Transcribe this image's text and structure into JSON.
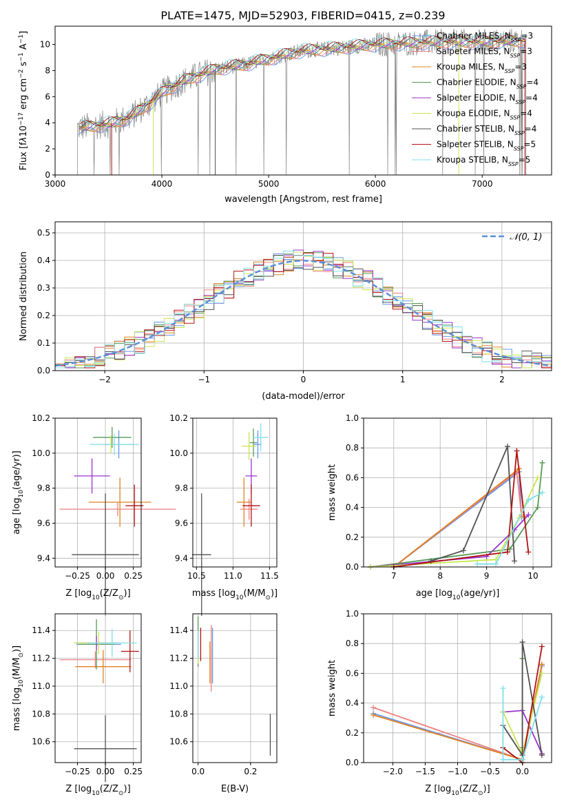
{
  "figure_title": "PLATE=1475, MJD=52903, FIBERID=0415, z=0.239",
  "colors": {
    "chabrier_miles": "#6495ed",
    "salpeter_miles": "#f08080",
    "kroupa_miles": "#e08020",
    "chabrier_elodie": "#559955",
    "salpeter_elodie": "#9932cc",
    "kroupa_elodie": "#c8e650",
    "chabrier_stelib": "#505050",
    "salpeter_stelib": "#b01010",
    "kroupa_stelib": "#7fdfe8",
    "data": "#808080",
    "gaussian": "#5b8fd9"
  },
  "chart_data": [
    {
      "id": "spectrum",
      "type": "line",
      "xlabel": "wavelength [Angstrom, rest frame]",
      "ylabel_parts": [
        "Flux [f",
        "λ",
        "10",
        "−17",
        " erg cm",
        "−2",
        " s",
        "−1",
        " A",
        "−1",
        "]"
      ],
      "xlim": [
        3000,
        7650
      ],
      "ylim": [
        0,
        11.4
      ],
      "xticks": [
        3000,
        4000,
        5000,
        6000,
        7000
      ],
      "yticks": [
        0,
        2,
        4,
        6,
        8,
        10
      ],
      "data_color_key": "data",
      "data_range": [
        3210,
        7410
      ],
      "continuum": [
        [
          3210,
          3.6
        ],
        [
          3500,
          3.9
        ],
        [
          3700,
          4.4
        ],
        [
          3900,
          5.6
        ],
        [
          4000,
          6.3
        ],
        [
          4200,
          7.2
        ],
        [
          4500,
          8.1
        ],
        [
          4800,
          8.5
        ],
        [
          5000,
          8.9
        ],
        [
          5300,
          9.5
        ],
        [
          5600,
          9.7
        ],
        [
          6000,
          10.0
        ],
        [
          6300,
          10.1
        ],
        [
          6600,
          10.2
        ],
        [
          7000,
          10.2
        ],
        [
          7410,
          10.3
        ]
      ],
      "legend": [
        {
          "label": "Chabrier MILES, N",
          "sub": "SSP",
          "suffix": "=3",
          "color_key": "chabrier_miles"
        },
        {
          "label": "Salpeter MILES, N",
          "sub": "SSP",
          "suffix": "=3",
          "color_key": "salpeter_miles"
        },
        {
          "label": "Kroupa MILES, N",
          "sub": "SSP",
          "suffix": "=3",
          "color_key": "kroupa_miles"
        },
        {
          "label": "Chabrier ELODIE, N",
          "sub": "SSP",
          "suffix": "=4",
          "color_key": "chabrier_elodie"
        },
        {
          "label": "Salpeter ELODIE, N",
          "sub": "SSP",
          "suffix": "=4",
          "color_key": "salpeter_elodie"
        },
        {
          "label": "Kroupa ELODIE, N",
          "sub": "SSP",
          "suffix": "=4",
          "color_key": "kroupa_elodie"
        },
        {
          "label": "Chabrier STELIB, N",
          "sub": "SSP",
          "suffix": "=4",
          "color_key": "chabrier_stelib"
        },
        {
          "label": "Salpeter STELIB, N",
          "sub": "SSP",
          "suffix": "=5",
          "color_key": "salpeter_stelib"
        },
        {
          "label": "Kroupa STELIB, N",
          "sub": "SSP",
          "suffix": "=5",
          "color_key": "kroupa_stelib"
        }
      ],
      "legend_placement": "top-right",
      "grid": false
    },
    {
      "id": "residuals",
      "type": "histogram",
      "xlabel": "(data-model)/error",
      "ylabel": "Normed distribution",
      "xlim": [
        -2.5,
        2.5
      ],
      "ylim": [
        0,
        0.54
      ],
      "xticks": [
        -2,
        -1,
        0,
        1,
        2
      ],
      "xtick_labels": [
        "−2",
        "−1",
        "0",
        "1",
        "2"
      ],
      "yticks": [
        0.0,
        0.1,
        0.2,
        0.3,
        0.4,
        0.5
      ],
      "ytick_labels": [
        "0.0",
        "0.1",
        "0.2",
        "0.3",
        "0.4",
        "0.5"
      ],
      "bin_width": 0.1,
      "grid": true,
      "gaussian_label": "𝒩(0, 1)",
      "legend_placement": "top-right"
    },
    {
      "id": "age_vs_z",
      "type": "errorbar",
      "xlabel_parts": [
        "Z [log",
        "10",
        "(Z/Z",
        "⊙",
        ")]"
      ],
      "ylabel_parts": [
        "age  [log",
        "10",
        "(age/yr)]"
      ],
      "xlim": [
        -0.45,
        0.32
      ],
      "ylim": [
        9.35,
        10.2
      ],
      "xticks": [
        -0.25,
        0.0,
        0.25
      ],
      "xtick_labels": [
        "−0.25",
        "0.00",
        "0.25"
      ],
      "yticks": [
        9.4,
        9.6,
        9.8,
        10.0,
        10.2
      ],
      "ytick_labels": [
        "9.4",
        "9.6",
        "9.8",
        "10.0",
        "10.2"
      ],
      "grid": true,
      "points": [
        {
          "color_key": "chabrier_miles",
          "x": 0.12,
          "xerr": 0.14,
          "y": 10.05,
          "yerr": 0.08
        },
        {
          "color_key": "salpeter_miles",
          "x": 0.11,
          "xerr": 0.52,
          "y": 9.68,
          "yerr": 0.04
        },
        {
          "color_key": "kroupa_miles",
          "x": 0.13,
          "xerr": 0.28,
          "y": 9.72,
          "yerr": 0.14
        },
        {
          "color_key": "chabrier_elodie",
          "x": 0.06,
          "xerr": 0.17,
          "y": 10.09,
          "yerr": 0.06
        },
        {
          "color_key": "salpeter_elodie",
          "x": -0.12,
          "xerr": 0.16,
          "y": 9.87,
          "yerr": 0.1
        },
        {
          "color_key": "kroupa_elodie",
          "x": 0.05,
          "xerr": 0.13,
          "y": 10.05,
          "yerr": 0.05
        },
        {
          "color_key": "chabrier_stelib",
          "x": 0.0,
          "xerr": 0.3,
          "y": 9.42,
          "yerr": 0.35
        },
        {
          "color_key": "salpeter_stelib",
          "x": 0.26,
          "xerr": 0.08,
          "y": 9.7,
          "yerr": 0.12
        },
        {
          "color_key": "kroupa_stelib",
          "x": 0.08,
          "xerr": 0.22,
          "y": 10.05,
          "yerr": 0.06
        }
      ]
    },
    {
      "id": "age_vs_mass",
      "type": "errorbar",
      "xlabel_parts": [
        "mass [log",
        "10",
        "(M/M",
        "⊙",
        ")]"
      ],
      "ylabel": "",
      "xlim": [
        10.45,
        11.6
      ],
      "ylim": [
        9.35,
        10.2
      ],
      "xticks": [
        10.5,
        11.0,
        11.5
      ],
      "xtick_labels": [
        "10.5",
        "11.0",
        "11.5"
      ],
      "yticks": [
        9.4,
        9.6,
        9.8,
        10.0,
        10.2
      ],
      "ytick_labels": [
        "9.4",
        "9.6",
        "9.8",
        "10.0",
        "10.2"
      ],
      "grid": true,
      "points": [
        {
          "color_key": "chabrier_miles",
          "x": 11.34,
          "xerr": 0.05,
          "y": 10.05,
          "yerr": 0.08
        },
        {
          "color_key": "salpeter_miles",
          "x": 11.22,
          "xerr": 0.12,
          "y": 9.68,
          "yerr": 0.06
        },
        {
          "color_key": "kroupa_miles",
          "x": 11.15,
          "xerr": 0.1,
          "y": 9.72,
          "yerr": 0.14
        },
        {
          "color_key": "chabrier_elodie",
          "x": 11.28,
          "xerr": 0.05,
          "y": 10.06,
          "yerr": 0.08
        },
        {
          "color_key": "salpeter_elodie",
          "x": 11.25,
          "xerr": 0.08,
          "y": 9.87,
          "yerr": 0.1
        },
        {
          "color_key": "kroupa_elodie",
          "x": 11.22,
          "xerr": 0.1,
          "y": 10.04,
          "yerr": 0.08
        },
        {
          "color_key": "chabrier_stelib",
          "x": 10.57,
          "xerr": 0.13,
          "y": 9.42,
          "yerr": 0.35
        },
        {
          "color_key": "salpeter_stelib",
          "x": 11.25,
          "xerr": 0.12,
          "y": 9.7,
          "yerr": 0.12
        },
        {
          "color_key": "kroupa_stelib",
          "x": 11.38,
          "xerr": 0.1,
          "y": 10.09,
          "yerr": 0.08
        }
      ]
    },
    {
      "id": "massweight_vs_age",
      "type": "line",
      "xlabel_parts": [
        "age  [log",
        "10",
        "(age/yr)]"
      ],
      "ylabel": "mass weight",
      "xlim": [
        6.35,
        10.4
      ],
      "ylim": [
        0,
        1.0
      ],
      "xticks": [
        7,
        8,
        9,
        10
      ],
      "xtick_labels": [
        "7",
        "8",
        "9",
        "10"
      ],
      "yticks": [
        0.0,
        0.2,
        0.4,
        0.6,
        0.8,
        1.0
      ],
      "ytick_labels": [
        "0.0",
        "0.2",
        "0.4",
        "0.6",
        "0.8",
        "1.0"
      ],
      "grid": true,
      "series": [
        {
          "color_key": "chabrier_miles",
          "x": [
            7.0,
            9.7,
            9.75
          ],
          "y": [
            0.0,
            0.64,
            0.33
          ]
        },
        {
          "color_key": "salpeter_miles",
          "x": [
            7.0,
            9.65,
            9.75
          ],
          "y": [
            0.0,
            0.64,
            0.35
          ]
        },
        {
          "color_key": "kroupa_miles",
          "x": [
            7.0,
            9.7,
            9.8
          ],
          "y": [
            0.0,
            0.66,
            0.34
          ]
        },
        {
          "color_key": "chabrier_elodie",
          "x": [
            6.5,
            9.5,
            10.1,
            10.2
          ],
          "y": [
            0.0,
            0.12,
            0.4,
            0.7
          ]
        },
        {
          "color_key": "salpeter_elodie",
          "x": [
            6.5,
            9.0,
            9.6,
            9.9
          ],
          "y": [
            0.0,
            0.07,
            0.25,
            0.35
          ]
        },
        {
          "color_key": "kroupa_elodie",
          "x": [
            6.5,
            9.2,
            9.7,
            10.1
          ],
          "y": [
            0.0,
            0.05,
            0.33,
            0.6
          ]
        },
        {
          "color_key": "chabrier_stelib",
          "x": [
            7.8,
            8.5,
            9.45,
            9.6
          ],
          "y": [
            0.04,
            0.11,
            0.81,
            0.04
          ]
        },
        {
          "color_key": "salpeter_stelib",
          "x": [
            7.0,
            9.45,
            9.65,
            9.9
          ],
          "y": [
            0.0,
            0.1,
            0.78,
            0.1
          ]
        },
        {
          "color_key": "kroupa_stelib",
          "x": [
            8.8,
            9.2,
            9.9,
            10.2
          ],
          "y": [
            0.02,
            0.02,
            0.45,
            0.5
          ]
        }
      ]
    },
    {
      "id": "mass_vs_z",
      "type": "errorbar",
      "xlabel_parts": [
        "Z [log",
        "10",
        "(Z/Z",
        "⊙",
        ")]"
      ],
      "ylabel_parts": [
        "mass [log",
        "10",
        "(M/M",
        "⊙",
        ")]"
      ],
      "xlim": [
        -0.45,
        0.32
      ],
      "ylim": [
        10.45,
        11.52
      ],
      "xticks": [
        -0.25,
        0.0,
        0.25
      ],
      "xtick_labels": [
        "−0.25",
        "0.00",
        "0.25"
      ],
      "yticks": [
        10.6,
        10.8,
        11.0,
        11.2,
        11.4
      ],
      "ytick_labels": [
        "10.6",
        "10.8",
        "11.0",
        "11.2",
        "11.4"
      ],
      "grid": true,
      "points": [
        {
          "color_key": "chabrier_miles",
          "x": -0.06,
          "xerr": 0.2,
          "y": 11.3,
          "yerr": 0.02
        },
        {
          "color_key": "salpeter_miles",
          "x": -0.09,
          "xerr": 0.32,
          "y": 11.19,
          "yerr": 0.06
        },
        {
          "color_key": "kroupa_miles",
          "x": -0.02,
          "xerr": 0.25,
          "y": 11.14,
          "yerr": 0.12
        },
        {
          "color_key": "chabrier_elodie",
          "x": -0.08,
          "xerr": 0.16,
          "y": 11.3,
          "yerr": 0.18
        },
        {
          "color_key": "salpeter_elodie",
          "x": -0.08,
          "xerr": 0.2,
          "y": 11.31,
          "yerr": 0.05
        },
        {
          "color_key": "kroupa_elodie",
          "x": -0.06,
          "xerr": 0.22,
          "y": 11.31,
          "yerr": 0.08
        },
        {
          "color_key": "chabrier_stelib",
          "x": 0.0,
          "xerr": 0.28,
          "y": 10.55,
          "yerr": 0.24
        },
        {
          "color_key": "salpeter_stelib",
          "x": 0.22,
          "xerr": 0.08,
          "y": 11.25,
          "yerr": 0.15
        },
        {
          "color_key": "kroupa_stelib",
          "x": 0.06,
          "xerr": 0.22,
          "y": 11.31,
          "yerr": 0.1
        }
      ]
    },
    {
      "id": "mass_vs_ebv",
      "type": "errorbar",
      "xlabel": "E(B-V)",
      "ylabel": "",
      "xlim": [
        -0.02,
        0.3
      ],
      "ylim": [
        10.45,
        11.52
      ],
      "xticks": [
        0.0,
        0.2
      ],
      "xtick_labels": [
        "0.0",
        "0.2"
      ],
      "yticks": [
        10.6,
        10.8,
        11.0,
        11.2,
        11.4
      ],
      "ytick_labels": [
        "10.6",
        "10.8",
        "11.0",
        "11.2",
        "11.4"
      ],
      "grid": true,
      "points": [
        {
          "color_key": "chabrier_miles",
          "x": 0.055,
          "xerr": 0.0,
          "y": 11.22,
          "yerr": 0.2
        },
        {
          "color_key": "salpeter_miles",
          "x": 0.05,
          "xerr": 0.0,
          "y": 11.2,
          "yerr": 0.24
        },
        {
          "color_key": "kroupa_miles",
          "x": 0.045,
          "xerr": 0.0,
          "y": 11.17,
          "yerr": 0.15
        },
        {
          "color_key": "chabrier_elodie",
          "x": 0.0,
          "xerr": 0.0,
          "y": 11.32,
          "yerr": 0.18
        },
        {
          "color_key": "salpeter_elodie",
          "x": 0.0,
          "xerr": 0.0,
          "y": 11.3,
          "yerr": 0.1
        },
        {
          "color_key": "kroupa_elodie",
          "x": 0.0,
          "xerr": 0.0,
          "y": 11.28,
          "yerr": 0.12
        },
        {
          "color_key": "chabrier_stelib",
          "x": 0.275,
          "xerr": 0.0,
          "y": 10.65,
          "yerr": 0.15
        },
        {
          "color_key": "salpeter_stelib",
          "x": 0.01,
          "xerr": 0.0,
          "y": 11.3,
          "yerr": 0.12
        },
        {
          "color_key": "kroupa_stelib",
          "x": 0.0,
          "xerr": 0.0,
          "y": 11.3,
          "yerr": 0.1
        }
      ]
    },
    {
      "id": "massweight_vs_z",
      "type": "line",
      "xlabel_parts": [
        "Z [log",
        "10",
        "(Z/Z",
        "⊙",
        ")]"
      ],
      "ylabel": "mass weight",
      "xlim": [
        -2.45,
        0.45
      ],
      "ylim": [
        0,
        1.0
      ],
      "xticks": [
        -2.0,
        -1.5,
        -1.0,
        -0.5,
        0.0
      ],
      "xtick_labels": [
        "−2.0",
        "−1.5",
        "−1.0",
        "−0.5",
        "0.0"
      ],
      "yticks": [
        0.0,
        0.2,
        0.4,
        0.6,
        0.8,
        1.0
      ],
      "ytick_labels": [
        "0.0",
        "0.2",
        "0.4",
        "0.6",
        "0.8",
        "1.0"
      ],
      "grid": true,
      "series": [
        {
          "color_key": "chabrier_miles",
          "x": [
            -2.3,
            0.0,
            0.3
          ],
          "y": [
            0.33,
            0.02,
            0.65
          ]
        },
        {
          "color_key": "salpeter_miles",
          "x": [
            -2.3,
            0.0,
            0.3
          ],
          "y": [
            0.37,
            0.02,
            0.66
          ]
        },
        {
          "color_key": "kroupa_miles",
          "x": [
            -2.3,
            0.0,
            0.3
          ],
          "y": [
            0.32,
            0.02,
            0.66
          ]
        },
        {
          "color_key": "chabrier_elodie",
          "x": [
            0.0,
            0.0,
            0.0
          ],
          "y": [
            0.7,
            0.1,
            0.0
          ]
        },
        {
          "color_key": "salpeter_elodie",
          "x": [
            -0.3,
            0.0,
            0.3
          ],
          "y": [
            0.34,
            0.35,
            0.06
          ]
        },
        {
          "color_key": "kroupa_elodie",
          "x": [
            -0.3,
            0.0,
            0.3
          ],
          "y": [
            0.34,
            0.06,
            0.6
          ]
        },
        {
          "color_key": "chabrier_stelib",
          "x": [
            -0.3,
            0.0,
            0.0,
            0.3
          ],
          "y": [
            0.25,
            0.05,
            0.81,
            0.05
          ]
        },
        {
          "color_key": "salpeter_stelib",
          "x": [
            -0.3,
            0.0,
            0.3
          ],
          "y": [
            0.1,
            0.0,
            0.78
          ]
        },
        {
          "color_key": "kroupa_stelib",
          "x": [
            -0.3,
            -0.3,
            0.0,
            0.3
          ],
          "y": [
            0.5,
            0.02,
            0.02,
            0.44
          ]
        }
      ]
    }
  ]
}
